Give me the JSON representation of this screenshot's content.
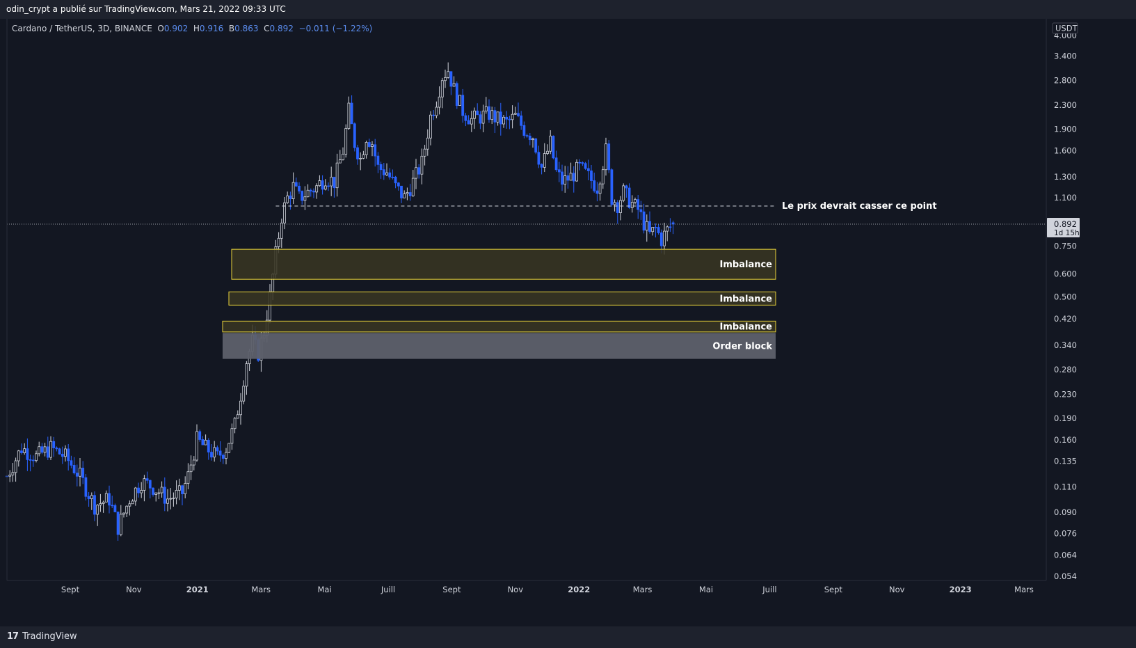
{
  "header": {
    "publisher_line": "odin_crypt a publié sur TradingView.com, Mars 21, 2022 09:33 UTC"
  },
  "legend": {
    "symbol": "Cardano / TetherUS, 3D, BINANCE",
    "o_label": "O",
    "o_value": "0.902",
    "h_label": "H",
    "h_value": "0.916",
    "b_label": "B",
    "b_value": "0.863",
    "c_label": "C",
    "c_value": "0.892",
    "change": "−0.011 (−1.22%)"
  },
  "footer": {
    "brand": "TradingView",
    "logo_icon": "tradingview-logo-icon"
  },
  "colors": {
    "background": "#131722",
    "up": "#d1d4dc",
    "down": "#2962ff",
    "imbalance_border": "#e8d33a",
    "imbalance_fill": "#3a3622",
    "order_block_fill": "#5d606b"
  },
  "chart_data": {
    "type": "candlestick",
    "y_scale": "log",
    "ylim": [
      0.054,
      4.6
    ],
    "y_ticks": [
      "4.000",
      "3.400",
      "2.800",
      "2.300",
      "1.900",
      "1.600",
      "1.300",
      "1.100",
      "0.750",
      "0.600",
      "0.500",
      "0.420",
      "0.340",
      "0.280",
      "0.230",
      "0.190",
      "0.160",
      "0.135",
      "0.110",
      "0.090",
      "0.076",
      "0.064",
      "0.054"
    ],
    "y_axis_unit": "USDT",
    "x_ticks": [
      {
        "label": "Sept",
        "bold": false
      },
      {
        "label": "Nov",
        "bold": false
      },
      {
        "label": "2021",
        "bold": true
      },
      {
        "label": "Mars",
        "bold": false
      },
      {
        "label": "Mai",
        "bold": false
      },
      {
        "label": "Juill",
        "bold": false
      },
      {
        "label": "Sept",
        "bold": false
      },
      {
        "label": "Nov",
        "bold": false
      },
      {
        "label": "2022",
        "bold": true
      },
      {
        "label": "Mars",
        "bold": false
      },
      {
        "label": "Mai",
        "bold": false
      },
      {
        "label": "Juill",
        "bold": false
      },
      {
        "label": "Sept",
        "bold": false
      },
      {
        "label": "Nov",
        "bold": false
      },
      {
        "label": "2023",
        "bold": true
      },
      {
        "label": "Mars",
        "bold": false
      }
    ],
    "last_price": "0.892",
    "countdown": "1d 15h",
    "price_path": [
      [
        0,
        0.12
      ],
      [
        5,
        0.15
      ],
      [
        10,
        0.14
      ],
      [
        15,
        0.15
      ],
      [
        20,
        0.14
      ],
      [
        25,
        0.12
      ],
      [
        30,
        0.095
      ],
      [
        35,
        0.1
      ],
      [
        38,
        0.08
      ],
      [
        42,
        0.1
      ],
      [
        46,
        0.115
      ],
      [
        50,
        0.11
      ],
      [
        55,
        0.1
      ],
      [
        60,
        0.105
      ],
      [
        62,
        0.12
      ],
      [
        65,
        0.16
      ],
      [
        68,
        0.15
      ],
      [
        72,
        0.14
      ],
      [
        75,
        0.15
      ],
      [
        78,
        0.18
      ],
      [
        80,
        0.23
      ],
      [
        82,
        0.3
      ],
      [
        84,
        0.35
      ],
      [
        86,
        0.32
      ],
      [
        88,
        0.38
      ],
      [
        90,
        0.5
      ],
      [
        92,
        0.7
      ],
      [
        94,
        0.95
      ],
      [
        96,
        1.1
      ],
      [
        98,
        1.2
      ],
      [
        100,
        1.1
      ],
      [
        103,
        1.15
      ],
      [
        106,
        1.2
      ],
      [
        109,
        1.3
      ],
      [
        112,
        1.25
      ],
      [
        115,
        1.6
      ],
      [
        117,
        2.2
      ],
      [
        119,
        1.7
      ],
      [
        121,
        1.5
      ],
      [
        123,
        1.8
      ],
      [
        125,
        1.7
      ],
      [
        127,
        1.4
      ],
      [
        130,
        1.35
      ],
      [
        133,
        1.2
      ],
      [
        136,
        1.1
      ],
      [
        139,
        1.25
      ],
      [
        142,
        1.45
      ],
      [
        145,
        2.1
      ],
      [
        147,
        2.4
      ],
      [
        149,
        2.9
      ],
      [
        151,
        3.05
      ],
      [
        153,
        2.6
      ],
      [
        156,
        2.2
      ],
      [
        159,
        2.05
      ],
      [
        162,
        2.1
      ],
      [
        165,
        2.15
      ],
      [
        168,
        2.05
      ],
      [
        171,
        2.0
      ],
      [
        174,
        2.1
      ],
      [
        177,
        1.9
      ],
      [
        180,
        1.8
      ],
      [
        183,
        1.4
      ],
      [
        186,
        1.7
      ],
      [
        188,
        1.35
      ],
      [
        190,
        1.25
      ],
      [
        193,
        1.3
      ],
      [
        196,
        1.4
      ],
      [
        199,
        1.3
      ],
      [
        202,
        1.2
      ],
      [
        205,
        1.6
      ],
      [
        207,
        1.1
      ],
      [
        209,
        1.05
      ],
      [
        211,
        1.15
      ],
      [
        214,
        1.05
      ],
      [
        216,
        1.0
      ],
      [
        218,
        0.9
      ],
      [
        220,
        0.82
      ],
      [
        222,
        0.86
      ],
      [
        224,
        0.79
      ],
      [
        226,
        0.85
      ],
      [
        228,
        0.892
      ]
    ]
  },
  "annotations": {
    "resistance_label": "Le prix devrait casser ce point",
    "resistance_price": 1.03,
    "zones": [
      {
        "name": "imbalance-zone-1",
        "label": "Imbalance",
        "low": 0.575,
        "high": 0.73,
        "type": "imbalance"
      },
      {
        "name": "imbalance-zone-2",
        "label": "Imbalance",
        "low": 0.468,
        "high": 0.52,
        "type": "imbalance"
      },
      {
        "name": "imbalance-zone-3",
        "label": "Imbalance",
        "low": 0.378,
        "high": 0.412,
        "type": "imbalance"
      },
      {
        "name": "order-block-zone",
        "label": "Order block",
        "low": 0.305,
        "high": 0.375,
        "type": "order_block"
      }
    ]
  }
}
